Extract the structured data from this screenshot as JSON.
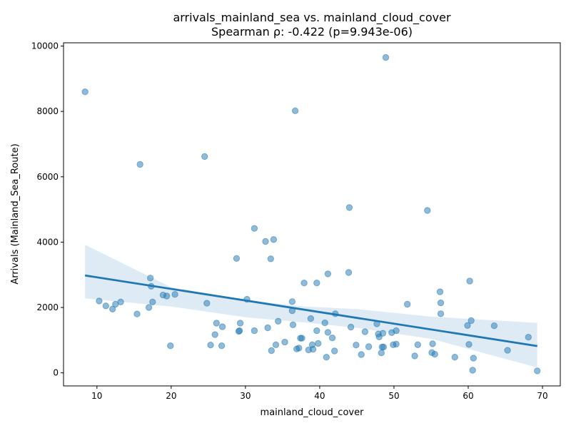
{
  "chart_data": {
    "type": "scatter",
    "title": "arrivals_mainland_sea vs. mainland_cloud_cover",
    "subtitle": "Spearman ρ: -0.422 (p=9.943e-06)",
    "xlabel": "mainland_cloud_cover",
    "ylabel": "Arrivals (Mainland_Sea_Route)",
    "xlim": [
      5.5,
      72.4
    ],
    "ylim": [
      -400,
      10100
    ],
    "xticks": [
      10,
      20,
      30,
      40,
      50,
      60,
      70
    ],
    "yticks": [
      0,
      2000,
      4000,
      6000,
      8000,
      10000
    ],
    "grid": false,
    "point_color": "#1f77b4",
    "regression": {
      "color": "#1f77b4",
      "line": [
        [
          8.4,
          2980
        ],
        [
          69.3,
          820
        ]
      ],
      "ci_upper": [
        [
          8.4,
          3920
        ],
        [
          20,
          2620
        ],
        [
          30,
          2220
        ],
        [
          38,
          2030
        ],
        [
          45,
          1950
        ],
        [
          55,
          1720
        ],
        [
          69.3,
          1530
        ]
      ],
      "ci_lower": [
        [
          8.4,
          2280
        ],
        [
          20,
          2030
        ],
        [
          30,
          1700
        ],
        [
          38,
          1540
        ],
        [
          45,
          1380
        ],
        [
          55,
          1040
        ],
        [
          69.3,
          160
        ]
      ]
    },
    "points": [
      [
        8.4,
        8600
      ],
      [
        10.3,
        2200
      ],
      [
        11.2,
        2050
      ],
      [
        12.1,
        1950
      ],
      [
        12.5,
        2100
      ],
      [
        13.2,
        2170
      ],
      [
        15.4,
        1800
      ],
      [
        15.8,
        6380
      ],
      [
        17.0,
        2000
      ],
      [
        17.2,
        2900
      ],
      [
        17.3,
        2650
      ],
      [
        17.5,
        2170
      ],
      [
        18.9,
        2380
      ],
      [
        19.4,
        2350
      ],
      [
        19.9,
        830
      ],
      [
        20.5,
        2400
      ],
      [
        24.5,
        6620
      ],
      [
        24.8,
        2130
      ],
      [
        25.3,
        850
      ],
      [
        25.9,
        1170
      ],
      [
        26.1,
        1520
      ],
      [
        26.8,
        830
      ],
      [
        26.9,
        1410
      ],
      [
        28.8,
        3500
      ],
      [
        29.1,
        1270
      ],
      [
        29.2,
        1290
      ],
      [
        29.3,
        1520
      ],
      [
        30.2,
        2250
      ],
      [
        31.2,
        4420
      ],
      [
        31.2,
        1290
      ],
      [
        32.7,
        4020
      ],
      [
        33.0,
        1380
      ],
      [
        33.4,
        3490
      ],
      [
        33.5,
        680
      ],
      [
        33.8,
        4080
      ],
      [
        34.1,
        860
      ],
      [
        34.4,
        1580
      ],
      [
        35.3,
        940
      ],
      [
        36.3,
        2180
      ],
      [
        36.3,
        1900
      ],
      [
        36.4,
        1470
      ],
      [
        36.7,
        8020
      ],
      [
        36.9,
        730
      ],
      [
        37.2,
        760
      ],
      [
        37.4,
        1060
      ],
      [
        37.6,
        1060
      ],
      [
        37.9,
        2750
      ],
      [
        38.5,
        700
      ],
      [
        38.8,
        1660
      ],
      [
        39.0,
        860
      ],
      [
        39.1,
        720
      ],
      [
        39.6,
        2750
      ],
      [
        39.6,
        1290
      ],
      [
        39.8,
        900
      ],
      [
        40.7,
        1530
      ],
      [
        40.9,
        480
      ],
      [
        41.1,
        3030
      ],
      [
        41.1,
        1240
      ],
      [
        41.7,
        1070
      ],
      [
        42.0,
        670
      ],
      [
        42.1,
        1810
      ],
      [
        43.9,
        3070
      ],
      [
        44.0,
        5060
      ],
      [
        44.2,
        1400
      ],
      [
        44.9,
        850
      ],
      [
        45.6,
        560
      ],
      [
        46.1,
        1260
      ],
      [
        46.6,
        800
      ],
      [
        47.7,
        1500
      ],
      [
        47.9,
        1190
      ],
      [
        48.0,
        1100
      ],
      [
        48.3,
        610
      ],
      [
        48.4,
        790
      ],
      [
        48.5,
        1210
      ],
      [
        48.6,
        790
      ],
      [
        48.9,
        9650
      ],
      [
        49.7,
        1230
      ],
      [
        49.9,
        860
      ],
      [
        50.3,
        880
      ],
      [
        50.3,
        1290
      ],
      [
        51.8,
        2100
      ],
      [
        52.8,
        520
      ],
      [
        53.2,
        860
      ],
      [
        54.5,
        4970
      ],
      [
        55.1,
        620
      ],
      [
        55.2,
        890
      ],
      [
        55.5,
        570
      ],
      [
        56.2,
        2480
      ],
      [
        56.3,
        2140
      ],
      [
        56.3,
        1810
      ],
      [
        58.2,
        480
      ],
      [
        59.9,
        1450
      ],
      [
        60.1,
        870
      ],
      [
        60.2,
        2810
      ],
      [
        60.4,
        1600
      ],
      [
        60.6,
        80
      ],
      [
        60.7,
        450
      ],
      [
        63.5,
        1440
      ],
      [
        65.3,
        690
      ],
      [
        68.1,
        1090
      ],
      [
        69.3,
        60
      ]
    ]
  }
}
